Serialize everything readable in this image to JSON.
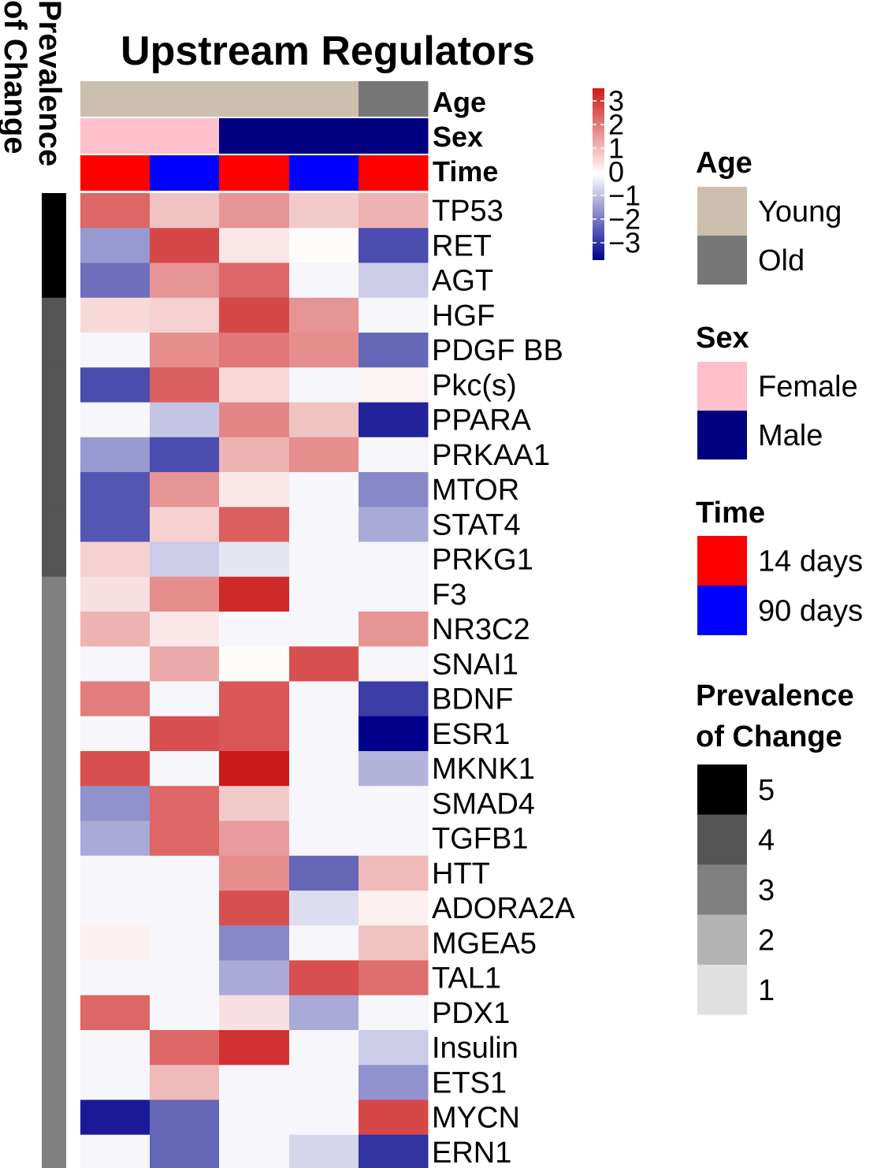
{
  "chart_data": {
    "type": "heatmap",
    "title": "Upstream Regulators",
    "columns": 5,
    "annotations": {
      "age": {
        "label": "Age",
        "values": [
          "Young",
          "Young",
          "Young",
          "Young",
          "Old"
        ]
      },
      "sex": {
        "label": "Sex",
        "values": [
          "Female",
          "Female",
          "Male",
          "Male",
          "Male"
        ]
      },
      "time": {
        "label": "Time",
        "values": [
          "14 days",
          "90 days",
          "14 days",
          "90 days",
          "14 days"
        ]
      }
    },
    "prevalence_label": "Prevalence of Change",
    "rows": [
      {
        "gene": "TP53",
        "prevalence": 5,
        "values": [
          2.0,
          0.8,
          1.4,
          0.7,
          1.0
        ]
      },
      {
        "gene": "RET",
        "prevalence": 5,
        "values": [
          -1.2,
          2.4,
          0.3,
          0.05,
          -2.1
        ]
      },
      {
        "gene": "AGT",
        "prevalence": 5,
        "values": [
          -1.7,
          1.4,
          2.0,
          -0.1,
          -0.6
        ]
      },
      {
        "gene": "HGF",
        "prevalence": 4,
        "values": [
          0.5,
          0.6,
          2.4,
          1.4,
          -0.1
        ]
      },
      {
        "gene": "PDGF BB",
        "prevalence": 4,
        "values": [
          -0.1,
          1.5,
          1.8,
          1.5,
          -1.8
        ]
      },
      {
        "gene": "Pkc(s)",
        "prevalence": 4,
        "values": [
          -2.1,
          2.1,
          0.5,
          -0.1,
          0.15
        ]
      },
      {
        "gene": "PPARA",
        "prevalence": 4,
        "values": [
          -0.1,
          -0.7,
          1.6,
          0.8,
          -2.6
        ]
      },
      {
        "gene": "PRKAA1",
        "prevalence": 4,
        "values": [
          -1.2,
          -2.1,
          1.0,
          1.5,
          -0.1
        ]
      },
      {
        "gene": "MTOR",
        "prevalence": 4,
        "values": [
          -2.0,
          1.4,
          0.3,
          -0.1,
          -1.4
        ]
      },
      {
        "gene": "STAT4",
        "prevalence": 4,
        "values": [
          -2.0,
          0.6,
          2.1,
          -0.1,
          -1.0
        ]
      },
      {
        "gene": "PRKG1",
        "prevalence": 4,
        "values": [
          0.6,
          -0.6,
          -0.3,
          -0.1,
          -0.1
        ]
      },
      {
        "gene": "F3",
        "prevalence": 3,
        "values": [
          0.4,
          1.5,
          2.8,
          -0.1,
          -0.1
        ]
      },
      {
        "gene": "NR3C2",
        "prevalence": 3,
        "values": [
          1.0,
          0.3,
          -0.1,
          -0.1,
          1.4
        ]
      },
      {
        "gene": "SNAI1",
        "prevalence": 3,
        "values": [
          -0.1,
          1.1,
          0.05,
          2.3,
          -0.1
        ]
      },
      {
        "gene": "BDNF",
        "prevalence": 3,
        "values": [
          1.7,
          -0.1,
          2.2,
          -0.1,
          -2.3
        ]
      },
      {
        "gene": "ESR1",
        "prevalence": 3,
        "values": [
          -0.1,
          2.3,
          2.2,
          -0.1,
          -3.0
        ]
      },
      {
        "gene": "MKNK1",
        "prevalence": 3,
        "values": [
          2.3,
          -0.1,
          3.0,
          -0.1,
          -0.9
        ]
      },
      {
        "gene": "SMAD4",
        "prevalence": 3,
        "values": [
          -1.3,
          2.0,
          0.7,
          -0.1,
          -0.1
        ]
      },
      {
        "gene": "TGFB1",
        "prevalence": 3,
        "values": [
          -1.0,
          2.0,
          1.3,
          -0.1,
          -0.1
        ]
      },
      {
        "gene": "HTT",
        "prevalence": 3,
        "values": [
          -0.1,
          -0.1,
          1.5,
          -1.8,
          0.9
        ]
      },
      {
        "gene": "ADORA2A",
        "prevalence": 3,
        "values": [
          -0.1,
          -0.1,
          2.3,
          -0.4,
          0.2
        ]
      },
      {
        "gene": "MGEA5",
        "prevalence": 3,
        "values": [
          0.2,
          -0.1,
          -1.4,
          -0.1,
          0.8
        ]
      },
      {
        "gene": "TAL1",
        "prevalence": 3,
        "values": [
          -0.1,
          -0.1,
          -1.0,
          2.3,
          1.9
        ]
      },
      {
        "gene": "PDX1",
        "prevalence": 3,
        "values": [
          2.0,
          -0.1,
          0.4,
          -1.0,
          -0.1
        ]
      },
      {
        "gene": "Insulin",
        "prevalence": 3,
        "values": [
          -0.1,
          2.0,
          2.7,
          -0.1,
          -0.6
        ]
      },
      {
        "gene": "ETS1",
        "prevalence": 3,
        "values": [
          -0.1,
          0.9,
          -0.1,
          -0.1,
          -1.3
        ]
      },
      {
        "gene": "MYCN",
        "prevalence": 3,
        "values": [
          -2.7,
          -1.8,
          -0.1,
          -0.1,
          2.4
        ]
      },
      {
        "gene": "ERN1",
        "prevalence": 3,
        "values": [
          -0.1,
          -1.8,
          -0.1,
          -0.5,
          -2.4
        ]
      }
    ],
    "color_scale": {
      "min": -3,
      "max": 3,
      "low_color": "#00008b",
      "mid_color": "#ffffff",
      "high_color": "#cc1a1a",
      "ticks": [
        "3",
        "2",
        "1",
        "0",
        "−1",
        "−2",
        "−3"
      ]
    },
    "legend": {
      "age": {
        "title": "Age",
        "items": [
          {
            "label": "Young",
            "color": "#ccbfae"
          },
          {
            "label": "Old",
            "color": "#777777"
          }
        ]
      },
      "sex": {
        "title": "Sex",
        "items": [
          {
            "label": "Female",
            "color": "#ffc0cb"
          },
          {
            "label": "Male",
            "color": "#000080"
          }
        ]
      },
      "time": {
        "title": "Time",
        "items": [
          {
            "label": "14 days",
            "color": "#ff0000"
          },
          {
            "label": "90 days",
            "color": "#0000ff"
          }
        ]
      },
      "prevalence": {
        "title_line1": "Prevalence",
        "title_line2": "of Change",
        "items": [
          {
            "label": "5",
            "color": "#000000"
          },
          {
            "label": "4",
            "color": "#555555"
          },
          {
            "label": "3",
            "color": "#808080"
          },
          {
            "label": "2",
            "color": "#b3b3b3"
          },
          {
            "label": "1",
            "color": "#e0e0e0"
          }
        ]
      }
    },
    "side_title_line1": "Prevalence",
    "side_title_line2": "of Change"
  }
}
